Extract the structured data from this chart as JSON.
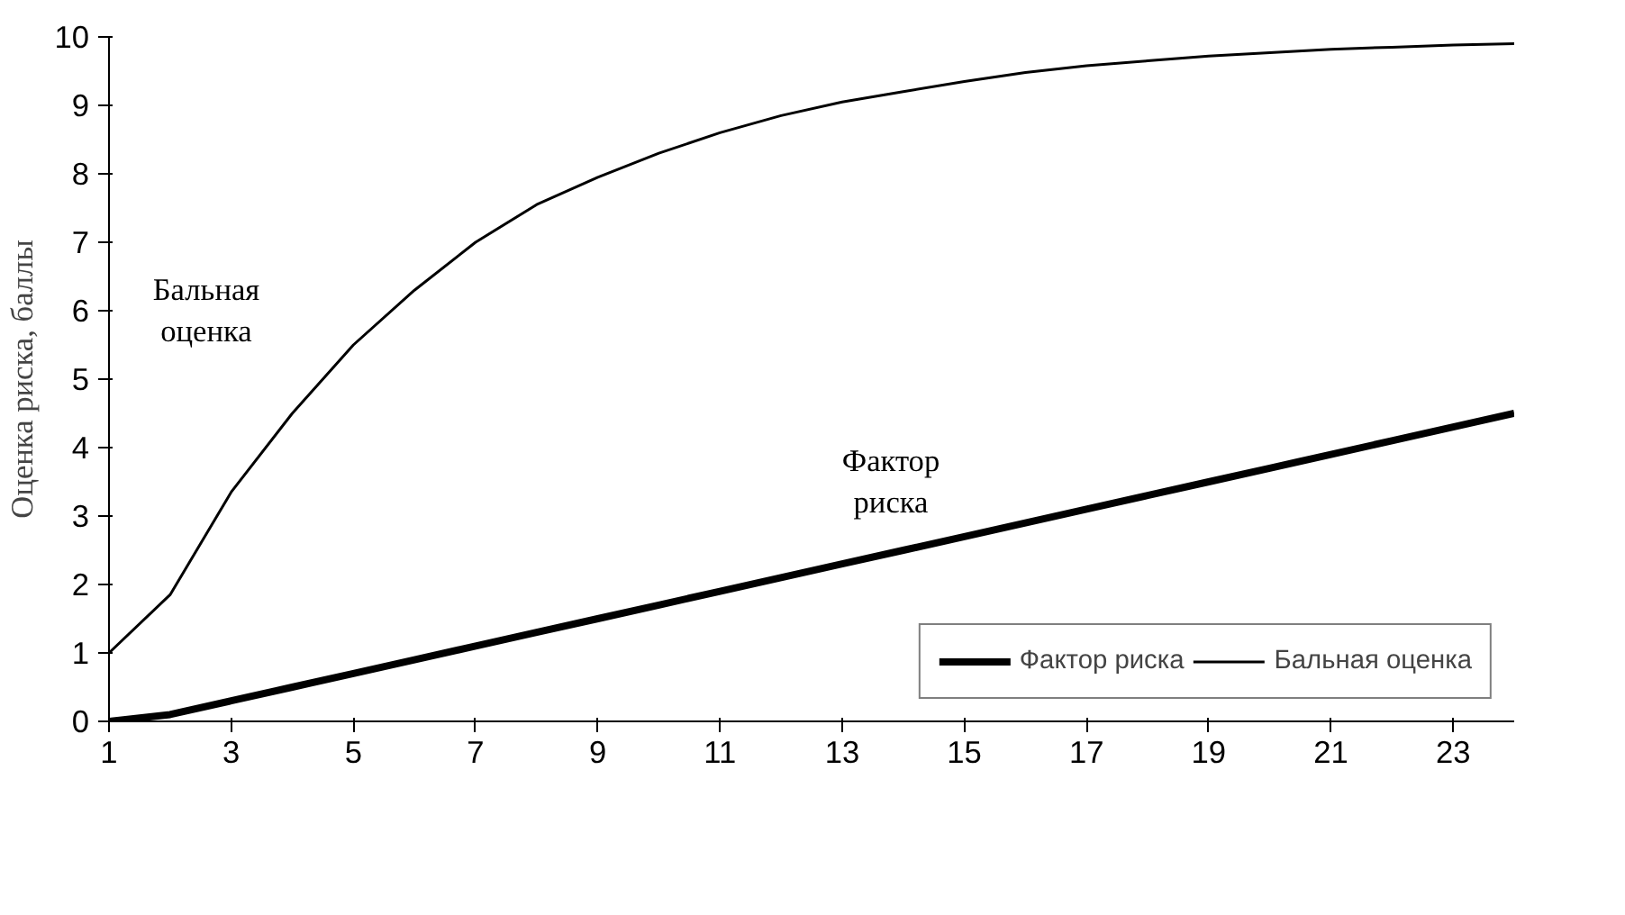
{
  "chart_data": {
    "type": "line",
    "ylabel": "Оценка риска, баллы",
    "x": [
      1,
      2,
      3,
      4,
      5,
      6,
      7,
      8,
      9,
      10,
      11,
      12,
      13,
      14,
      15,
      16,
      17,
      18,
      19,
      20,
      21,
      22,
      23,
      24
    ],
    "series": [
      {
        "name": "Фактор риска",
        "color": "#000000",
        "values": [
          0,
          0.1,
          0.3,
          0.5,
          0.7,
          0.9,
          1.1,
          1.3,
          1.5,
          1.7,
          1.9,
          2.1,
          2.3,
          2.5,
          2.7,
          2.9,
          3.1,
          3.3,
          3.5,
          3.7,
          3.9,
          4.1,
          4.3,
          4.5
        ]
      },
      {
        "name": "Бальная оценка",
        "color": "#000000",
        "values": [
          1.0,
          1.85,
          3.35,
          4.5,
          5.5,
          6.3,
          7.0,
          7.55,
          7.95,
          8.3,
          8.6,
          8.85,
          9.05,
          9.2,
          9.35,
          9.48,
          9.58,
          9.65,
          9.72,
          9.77,
          9.82,
          9.85,
          9.88,
          9.9
        ]
      }
    ],
    "annotations": [
      "Бальная\nоценка",
      "Фактор\nриска"
    ],
    "xlim": [
      1,
      24
    ],
    "xticks": [
      1,
      3,
      5,
      7,
      9,
      11,
      13,
      15,
      17,
      19,
      21,
      23
    ],
    "ylim": [
      0,
      10
    ],
    "yticks": [
      0,
      1,
      2,
      3,
      4,
      5,
      6,
      7,
      8,
      9,
      10
    ],
    "grid": false,
    "legend": "bottom right",
    "marker": "none",
    "line_style": "solid"
  }
}
